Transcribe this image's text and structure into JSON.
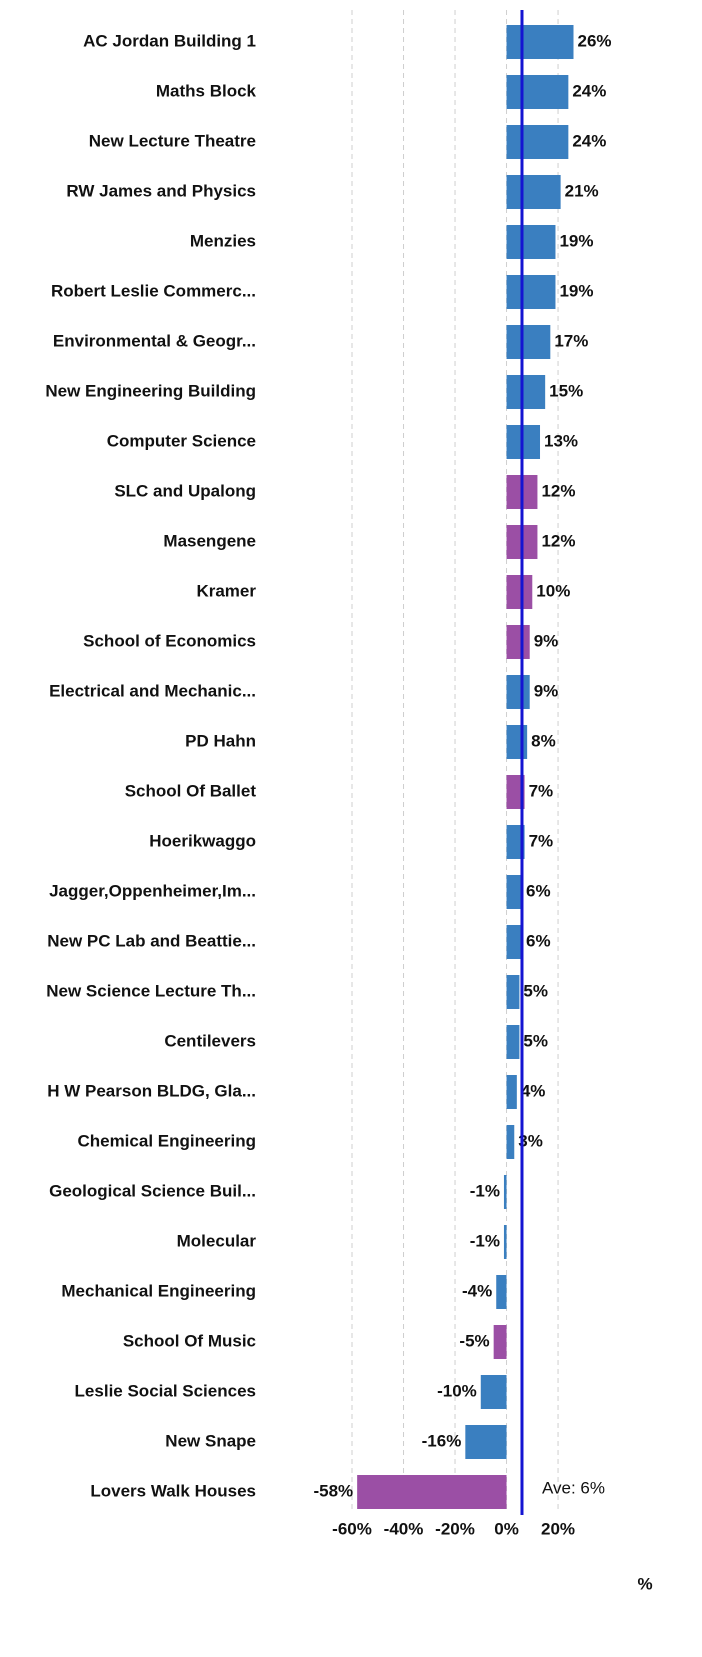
{
  "chart_data": {
    "type": "hbar",
    "categories": [
      "AC Jordan Building 1",
      "Maths Block",
      "New Lecture Theatre",
      "RW James and Physics",
      "Menzies",
      "Robert Leslie Commerc...",
      "Environmental & Geogr...",
      "New Engineering Building",
      "Computer Science",
      "SLC and Upalong",
      "Masengene",
      "Kramer",
      "School of Economics",
      "Electrical and Mechanic...",
      "PD Hahn",
      "School Of Ballet",
      "Hoerikwaggo",
      "Jagger,Oppenheimer,Im...",
      "New PC Lab and Beattie...",
      "New Science Lecture Th...",
      "Centilevers",
      "H W Pearson BLDG, Gla...",
      "Chemical Engineering",
      "Geological Science Buil...",
      "Molecular",
      "Mechanical Engineering",
      "School Of Music",
      "Leslie Social Sciences",
      "New Snape",
      "Lovers Walk Houses"
    ],
    "values": [
      26,
      24,
      24,
      21,
      19,
      19,
      17,
      15,
      13,
      12,
      12,
      10,
      9,
      9,
      8,
      7,
      7,
      6,
      6,
      5,
      5,
      4,
      3,
      -1,
      -1,
      -4,
      -5,
      -10,
      -16,
      -58
    ],
    "value_labels": [
      "26%",
      "24%",
      "24%",
      "21%",
      "19%",
      "19%",
      "17%",
      "15%",
      "13%",
      "12%",
      "12%",
      "10%",
      "9%",
      "9%",
      "8%",
      "7%",
      "7%",
      "6%",
      "6%",
      "5%",
      "5%",
      "4%",
      "3%",
      "-1%",
      "-1%",
      "-4%",
      "-5%",
      "-10%",
      "-16%",
      "-58%"
    ],
    "colors": [
      "#3a7fc0",
      "#3a7fc0",
      "#3a7fc0",
      "#3a7fc0",
      "#3a7fc0",
      "#3a7fc0",
      "#3a7fc0",
      "#3a7fc0",
      "#3a7fc0",
      "#9b4fa5",
      "#9b4fa5",
      "#9b4fa5",
      "#9b4fa5",
      "#3a7fc0",
      "#3a7fc0",
      "#9b4fa5",
      "#3a7fc0",
      "#3a7fc0",
      "#3a7fc0",
      "#3a7fc0",
      "#3a7fc0",
      "#3a7fc0",
      "#3a7fc0",
      "#3a7fc0",
      "#3a7fc0",
      "#3a7fc0",
      "#9b4fa5",
      "#3a7fc0",
      "#3a7fc0",
      "#9b4fa5"
    ],
    "xlim": [
      -60,
      26
    ],
    "xticks": [
      {
        "value": -60,
        "label": "-60%"
      },
      {
        "value": -40,
        "label": "-40%"
      },
      {
        "value": -20,
        "label": "-20%"
      },
      {
        "value": 0,
        "label": "0%"
      },
      {
        "value": 20,
        "label": "20%"
      }
    ],
    "xlabel": "%",
    "grid": true,
    "average": {
      "value": 6,
      "label": "Ave: 6%",
      "color": "#1414d2"
    }
  }
}
